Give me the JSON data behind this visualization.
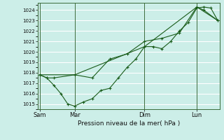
{
  "bg_color": "#cceee8",
  "grid_color": "#ffffff",
  "line_color": "#1a5c1a",
  "marker_color": "#1a5c1a",
  "xlabel": "Pression niveau de la mer( hPa )",
  "ylim": [
    1014.5,
    1024.7
  ],
  "yticks": [
    1015,
    1016,
    1017,
    1018,
    1019,
    1020,
    1021,
    1022,
    1023,
    1024
  ],
  "xtick_labels": [
    "Sam",
    "Mar",
    "Dim",
    "Lun"
  ],
  "xtick_positions": [
    0,
    2,
    6,
    9
  ],
  "vline_positions": [
    0,
    2,
    6,
    9
  ],
  "xlim": [
    -0.1,
    10.3
  ],
  "line1_x": [
    0.0,
    0.4,
    0.8,
    1.2,
    1.6,
    2.0,
    2.5,
    3.0,
    3.5,
    4.0,
    4.5,
    5.0,
    5.5,
    6.0,
    6.5,
    7.0,
    7.5,
    8.0,
    8.5,
    9.0,
    9.4,
    9.8,
    10.2
  ],
  "line1_y": [
    1017.8,
    1017.5,
    1016.8,
    1016.0,
    1015.0,
    1014.8,
    1015.2,
    1015.5,
    1016.3,
    1016.5,
    1017.5,
    1018.5,
    1019.3,
    1020.5,
    1020.5,
    1020.3,
    1021.0,
    1022.0,
    1022.8,
    1024.2,
    1024.3,
    1024.2,
    1023.0
  ],
  "line2_x": [
    0.0,
    0.4,
    0.8,
    2.0,
    3.0,
    4.0,
    5.0,
    6.0,
    7.0,
    8.0,
    9.0,
    9.4,
    10.2
  ],
  "line2_y": [
    1017.8,
    1017.5,
    1017.5,
    1017.8,
    1017.5,
    1019.3,
    1019.8,
    1021.0,
    1021.3,
    1021.8,
    1024.3,
    1024.0,
    1023.0
  ],
  "line3_x": [
    0.0,
    2.0,
    6.0,
    9.0,
    10.2
  ],
  "line3_y": [
    1017.8,
    1017.8,
    1020.5,
    1024.3,
    1023.0
  ]
}
